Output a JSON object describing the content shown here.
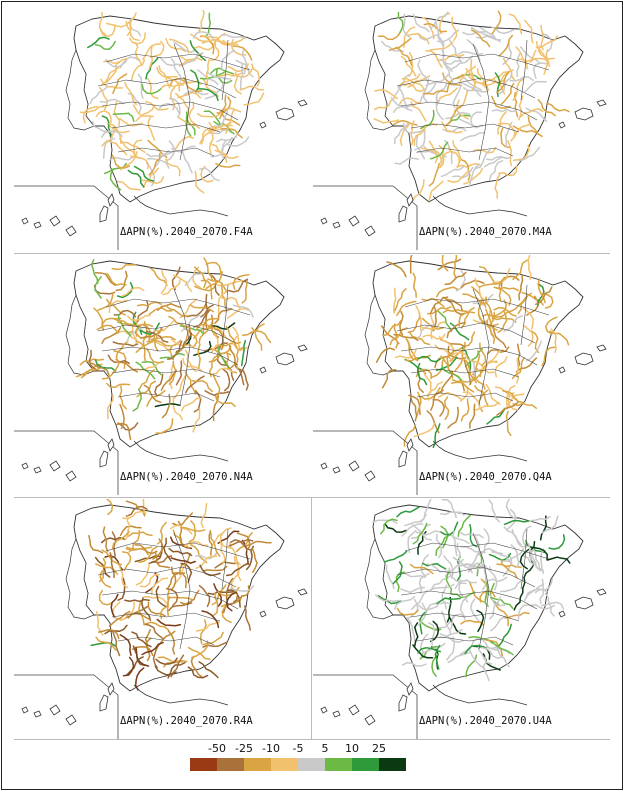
{
  "panels": [
    {
      "label": "ΔAPN(%).2040_2070.F4A",
      "palette": [
        "#f2c16e",
        "#d9a441",
        "#c9c9c9",
        "#6cb946",
        "#2e9a3a"
      ],
      "green_share": 0.12,
      "gray_share": 0.25
    },
    {
      "label": "ΔAPN(%).2040_2070.M4A",
      "palette": [
        "#f2c16e",
        "#c9c9c9",
        "#d9a441",
        "#6cb946"
      ],
      "green_share": 0.05,
      "gray_share": 0.45
    },
    {
      "label": "ΔAPN(%).2040_2070.N4A",
      "palette": [
        "#d9a441",
        "#c28a35",
        "#a8723a",
        "#f2c16e",
        "#2e9a3a",
        "#0b3a12"
      ],
      "green_share": 0.1,
      "gray_share": 0.02
    },
    {
      "label": "ΔAPN(%).2040_2070.Q4A",
      "palette": [
        "#d9a441",
        "#f2c16e",
        "#c28a35",
        "#6cb946"
      ],
      "green_share": 0.05,
      "gray_share": 0.03
    },
    {
      "label": "ΔAPN(%).2040_2070.R4A",
      "palette": [
        "#a8723a",
        "#8a5a2b",
        "#c28a35",
        "#7a3a18",
        "#d9a441",
        "#f2c16e"
      ],
      "green_share": 0.01,
      "gray_share": 0.01
    },
    {
      "label": "ΔAPN(%).2040_2070.U4A",
      "palette": [
        "#c9c9c9",
        "#c9c9c9",
        "#d9a441",
        "#2e9a3a",
        "#0b3a12",
        "#6cb946"
      ],
      "green_share": 0.3,
      "gray_share": 0.4
    }
  ],
  "legend": {
    "ticks": [
      "-50",
      "-25",
      "-10",
      "-5",
      "5",
      "10",
      "25"
    ],
    "colors": [
      "#9a3a14",
      "#a8723a",
      "#d9a441",
      "#f2c16e",
      "#c9c9c9",
      "#6cb946",
      "#2e9a3a",
      "#0b3a12"
    ]
  }
}
